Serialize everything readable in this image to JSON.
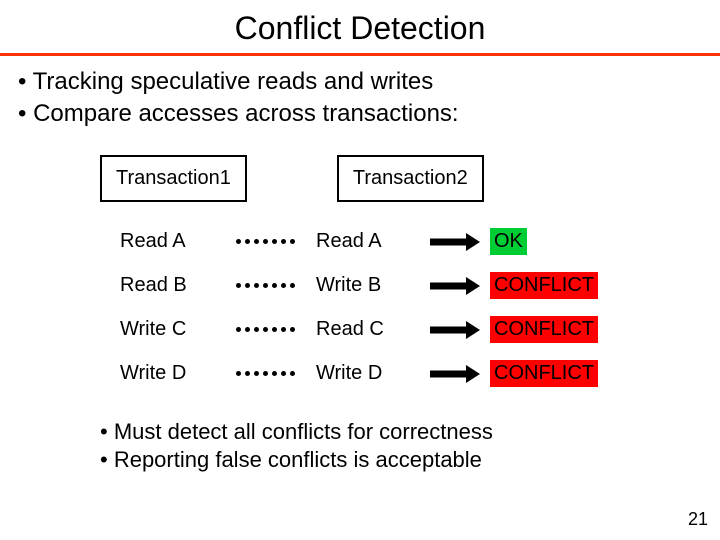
{
  "title": "Conflict Detection",
  "bullets_top": [
    "Tracking speculative reads and writes",
    "Compare accesses across transactions:"
  ],
  "tx_headers": {
    "t1": "Transaction1",
    "t2": "Transaction2"
  },
  "rows": [
    {
      "t1": "Read A",
      "t2": "Read A",
      "result": "OK",
      "kind": "ok"
    },
    {
      "t1": "Read B",
      "t2": "Write B",
      "result": "CONFLICT",
      "kind": "conflict"
    },
    {
      "t1": "Write C",
      "t2": "Read C",
      "result": "CONFLICT",
      "kind": "conflict"
    },
    {
      "t1": "Write D",
      "t2": "Write D",
      "result": "CONFLICT",
      "kind": "conflict"
    }
  ],
  "bullets_bottom": [
    "Must detect all conflicts for correctness",
    "Reporting false conflicts is acceptable"
  ],
  "page_number": "21",
  "style": {
    "rule_color": "#ff3300",
    "ok_bg": "#00cc33",
    "conflict_bg": "#ff0000",
    "dot_count": 7,
    "arrow": {
      "shaft_width": 36,
      "shaft_height": 7,
      "head_width": 14,
      "head_height": 18,
      "color": "#000000"
    }
  }
}
